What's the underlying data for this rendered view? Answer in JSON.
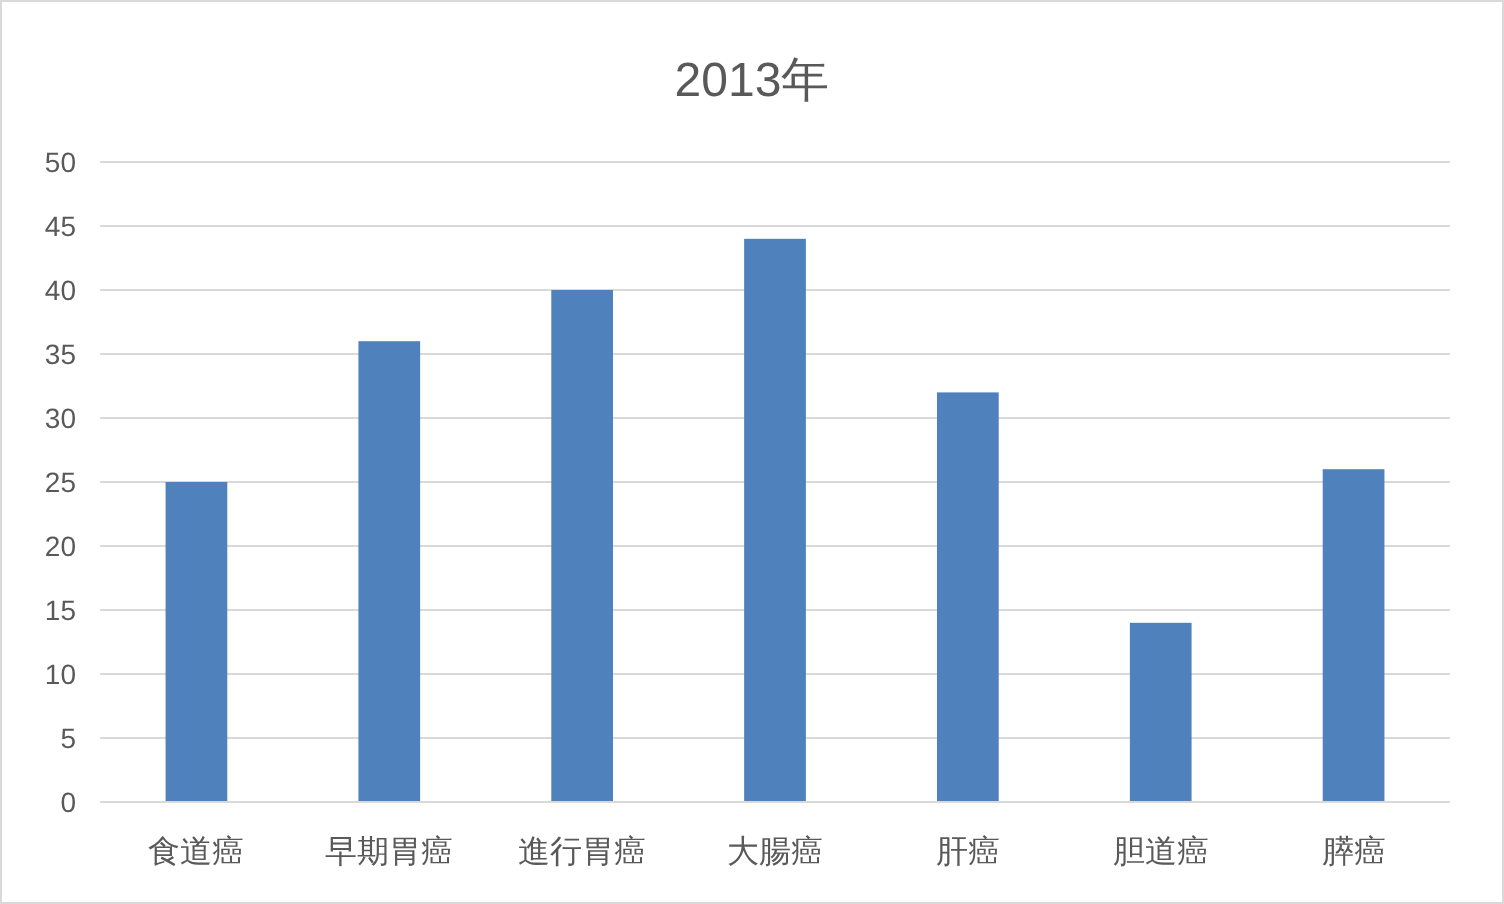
{
  "chart_data": {
    "type": "bar",
    "title": "2013年",
    "categories": [
      "食道癌",
      "早期胃癌",
      "進行胃癌",
      "大腸癌",
      "肝癌",
      "胆道癌",
      "膵癌"
    ],
    "values": [
      25,
      36,
      40,
      44,
      32,
      14,
      26
    ],
    "color": "#4f81bd",
    "ylim": [
      0,
      50
    ],
    "yticks": [
      0,
      5,
      10,
      15,
      20,
      25,
      30,
      35,
      40,
      45,
      50
    ],
    "grid": "y"
  }
}
